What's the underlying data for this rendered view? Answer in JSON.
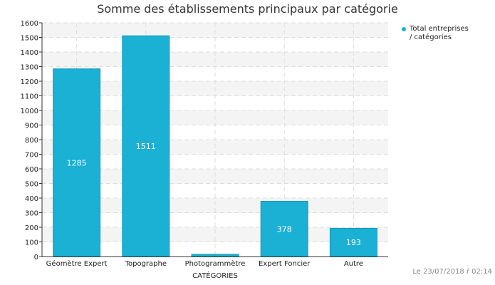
{
  "chart_data": {
    "type": "bar",
    "title": "Somme des établissements principaux par catégorie",
    "xlabel": "CATÉGORIES",
    "ylabel": "",
    "categories": [
      "Géomètre Expert",
      "Topographe",
      "Photogrammètre",
      "Expert Foncier",
      "Autre"
    ],
    "series": [
      {
        "name": "Total entreprises / catégories",
        "values": [
          1285,
          1511,
          15,
          378,
          193
        ],
        "data_labels": [
          "1285",
          "1511",
          "",
          "378",
          "193"
        ],
        "color": "#1ab1d4"
      }
    ],
    "ylim": [
      0,
      1600
    ],
    "yticks": [
      0,
      100,
      200,
      300,
      400,
      500,
      600,
      700,
      800,
      900,
      1000,
      1100,
      1200,
      1300,
      1400,
      1500,
      1600
    ],
    "grid": true,
    "legend_position": "right"
  },
  "legend": {
    "line1": "Total entreprises",
    "line2": "/ catégories"
  },
  "footer": {
    "date": "Le 23/07/2018 ŕ 02:14"
  }
}
